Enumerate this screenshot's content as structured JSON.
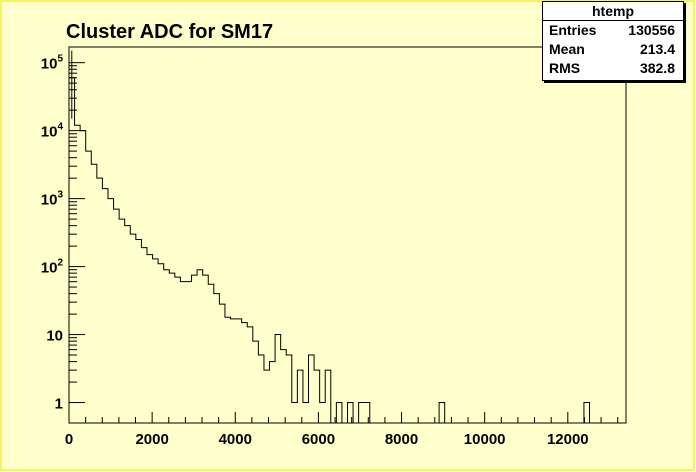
{
  "chart_data": {
    "type": "bar",
    "title": "Cluster ADC for SM17",
    "xlabel": "",
    "ylabel": "",
    "x_ticks": [
      "0",
      "2000",
      "4000",
      "6000",
      "8000",
      "10000",
      "12000"
    ],
    "x_tick_values": [
      0,
      2000,
      4000,
      6000,
      8000,
      10000,
      12000
    ],
    "y_ticks": [
      {
        "value": 1,
        "base": "1",
        "exp": ""
      },
      {
        "value": 10,
        "base": "10",
        "exp": ""
      },
      {
        "value": 100,
        "base": "10",
        "exp": "2"
      },
      {
        "value": 1000,
        "base": "10",
        "exp": "3"
      },
      {
        "value": 10000,
        "base": "10",
        "exp": "4"
      },
      {
        "value": 100000,
        "base": "10",
        "exp": "5"
      }
    ],
    "xlim": [
      0,
      13400
    ],
    "ylim": [
      0.5,
      170000
    ],
    "log_y": true,
    "bin_width": 134,
    "bins": [
      [
        0,
        60000
      ],
      [
        134,
        12000
      ],
      [
        268,
        10000
      ],
      [
        402,
        5000
      ],
      [
        536,
        3200
      ],
      [
        670,
        2000
      ],
      [
        804,
        1400
      ],
      [
        938,
        1000
      ],
      [
        1072,
        700
      ],
      [
        1206,
        500
      ],
      [
        1340,
        400
      ],
      [
        1474,
        300
      ],
      [
        1608,
        250
      ],
      [
        1742,
        190
      ],
      [
        1876,
        150
      ],
      [
        2010,
        130
      ],
      [
        2144,
        110
      ],
      [
        2278,
        90
      ],
      [
        2412,
        80
      ],
      [
        2546,
        70
      ],
      [
        2680,
        60
      ],
      [
        2814,
        60
      ],
      [
        2948,
        75
      ],
      [
        3082,
        90
      ],
      [
        3216,
        75
      ],
      [
        3350,
        55
      ],
      [
        3484,
        40
      ],
      [
        3618,
        28
      ],
      [
        3752,
        18
      ],
      [
        3886,
        17
      ],
      [
        4020,
        17
      ],
      [
        4154,
        15
      ],
      [
        4288,
        13
      ],
      [
        4422,
        8
      ],
      [
        4556,
        5
      ],
      [
        4690,
        3
      ],
      [
        4824,
        4
      ],
      [
        4958,
        10
      ],
      [
        5092,
        6
      ],
      [
        5226,
        5
      ],
      [
        5360,
        1
      ],
      [
        5494,
        3
      ],
      [
        5628,
        1
      ],
      [
        5762,
        5
      ],
      [
        5896,
        3
      ],
      [
        6030,
        1
      ],
      [
        6164,
        3
      ],
      [
        6298,
        0
      ],
      [
        6432,
        1
      ],
      [
        6566,
        0
      ],
      [
        6700,
        1
      ],
      [
        6834,
        0
      ],
      [
        6968,
        1
      ],
      [
        7102,
        1
      ],
      [
        8904,
        1
      ],
      [
        12388,
        1
      ]
    ],
    "stats": {
      "name": "htemp",
      "entries_label": "Entries",
      "entries": "130556",
      "mean_label": "Mean",
      "mean": "213.4",
      "rms_label": "RMS",
      "rms": "382.8"
    },
    "grid": false,
    "colors": {
      "frame_fill": "#ffffcc",
      "plot_fill": "#ffffcc",
      "line": "#000000"
    }
  }
}
